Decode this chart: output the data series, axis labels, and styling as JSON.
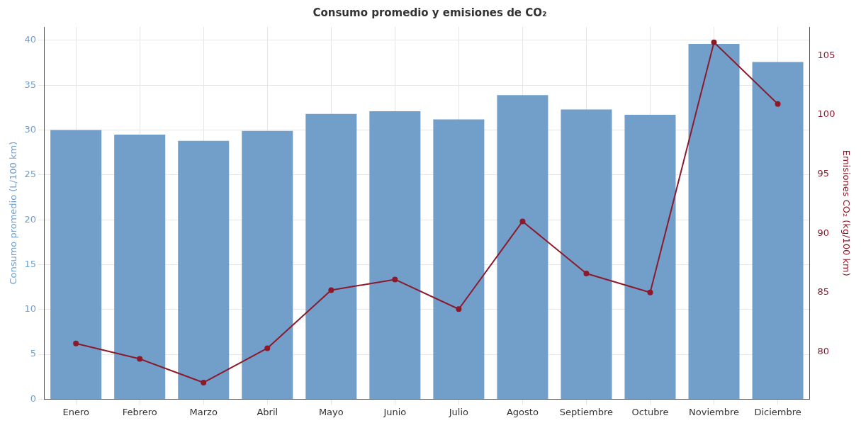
{
  "chart_data": {
    "type": "bar",
    "title": "Consumo promedio y emisiones de CO₂",
    "ylabel": "Consumo promedio (L/100 km)",
    "y2label": "Emisiones CO₂ (kg/100 km)",
    "categories": [
      "Enero",
      "Febrero",
      "Marzo",
      "Abril",
      "Mayo",
      "Junio",
      "Julio",
      "Agosto",
      "Septiembre",
      "Octubre",
      "Noviembre",
      "Diciembre"
    ],
    "series": [
      {
        "color": "#729fca",
        "values": [
          30.0,
          29.5,
          28.8,
          29.9,
          31.8,
          32.1,
          31.2,
          33.9,
          32.3,
          31.7,
          39.6,
          37.6
        ]
      },
      {
        "type": "line",
        "axis": "y2",
        "color": "#8b1a2b",
        "values": [
          80.7,
          79.4,
          77.4,
          80.3,
          85.2,
          86.1,
          83.6,
          91.0,
          86.6,
          85.0,
          106.1,
          100.9
        ]
      }
    ],
    "ylim": [
      0,
      41.5
    ],
    "yticks": [
      0,
      5,
      10,
      15,
      20,
      25,
      30,
      35,
      40
    ],
    "y2lim": [
      76,
      107.4
    ],
    "y2ticks": [
      80,
      85,
      90,
      95,
      100,
      105
    ],
    "grid": true,
    "legend": false,
    "marker": "circle",
    "line_style": "solid"
  }
}
